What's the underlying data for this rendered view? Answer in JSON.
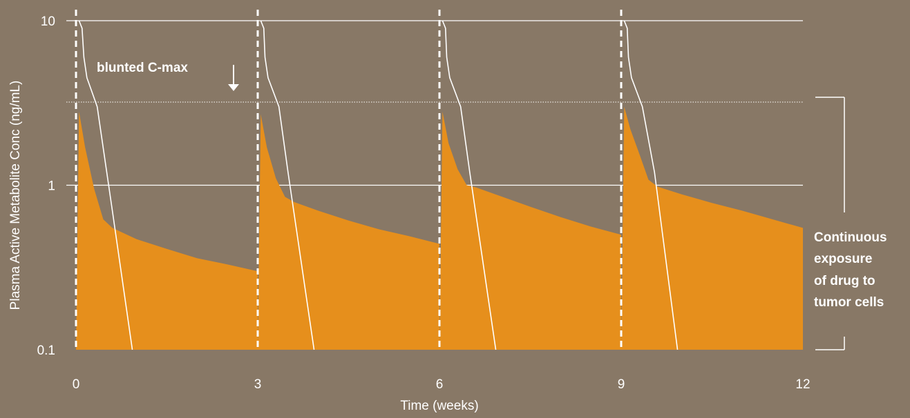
{
  "chart_data": {
    "type": "area",
    "xlabel": "Time (weeks)",
    "ylabel": "Plasma Active Metabolite Conc (ng/mL)",
    "y_scale": "log",
    "xlim": [
      0,
      12
    ],
    "ylim": [
      0.1,
      10
    ],
    "x_ticks": [
      "0",
      "3",
      "6",
      "9",
      "12"
    ],
    "x_tick_values": [
      0,
      3,
      6,
      9,
      12
    ],
    "y_ticks": [
      "0.1",
      "1",
      "10"
    ],
    "y_tick_values": [
      0.1,
      1,
      10
    ],
    "grid_y": [
      1,
      10
    ],
    "reference_line_y": 3.2,
    "dose_times": [
      0,
      3,
      6,
      9
    ],
    "area_series": {
      "x": [
        0,
        0.05,
        0.15,
        0.3,
        0.45,
        0.6,
        1.0,
        1.5,
        2.0,
        2.5,
        3.0,
        3.0,
        3.05,
        3.15,
        3.3,
        3.45,
        3.6,
        4.0,
        4.5,
        5.0,
        5.5,
        6.0,
        6.0,
        6.05,
        6.15,
        6.3,
        6.45,
        6.6,
        7.0,
        7.5,
        8.0,
        8.5,
        9.0,
        9.0,
        9.05,
        9.15,
        9.3,
        9.45,
        9.6,
        10.0,
        10.5,
        11.0,
        11.5,
        12.0
      ],
      "y": [
        0.1,
        2.8,
        1.7,
        0.95,
        0.62,
        0.55,
        0.47,
        0.41,
        0.36,
        0.33,
        0.3,
        0.1,
        2.7,
        1.7,
        1.1,
        0.85,
        0.79,
        0.7,
        0.61,
        0.54,
        0.49,
        0.44,
        0.1,
        2.8,
        1.8,
        1.25,
        1.0,
        0.97,
        0.86,
        0.74,
        0.64,
        0.56,
        0.5,
        0.1,
        3.0,
        2.2,
        1.55,
        1.08,
        0.98,
        0.88,
        0.78,
        0.7,
        0.62,
        0.55
      ]
    },
    "comparator_lines": [
      {
        "x": [
          0.05,
          0.1,
          0.13,
          0.18,
          0.35,
          0.6,
          0.93
        ],
        "y": [
          10,
          9,
          6,
          4.5,
          3.0,
          0.7,
          0.1
        ]
      },
      {
        "x": [
          3.05,
          3.1,
          3.12,
          3.17,
          3.35,
          3.5,
          3.93
        ],
        "y": [
          10,
          9,
          6,
          4.5,
          3.0,
          1.2,
          0.1
        ]
      },
      {
        "x": [
          6.05,
          6.1,
          6.12,
          6.17,
          6.35,
          6.5,
          6.93
        ],
        "y": [
          10,
          9,
          6,
          4.5,
          3.0,
          1.2,
          0.1
        ]
      },
      {
        "x": [
          9.05,
          9.1,
          9.12,
          9.17,
          9.35,
          9.55,
          9.93
        ],
        "y": [
          10,
          9,
          6,
          4.5,
          3.0,
          1.2,
          0.1
        ]
      }
    ],
    "annotations": {
      "cmax_note": "blunted C-max",
      "side_note": [
        "Continuous",
        "exposure",
        "of drug to",
        "tumor cells"
      ]
    },
    "colors": {
      "background": "#887866",
      "area": "#e68f1c",
      "lines": "#ffffff"
    }
  }
}
